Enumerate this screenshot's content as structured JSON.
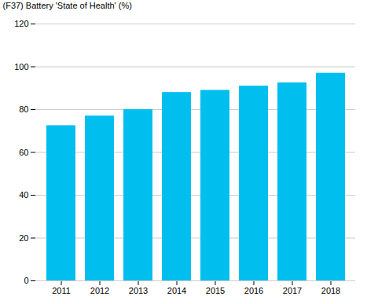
{
  "chart_data": {
    "type": "bar",
    "categories": [
      "2011",
      "2012",
      "2013",
      "2014",
      "2015",
      "2016",
      "2017",
      "2018"
    ],
    "values": [
      72.5,
      77.0,
      80.0,
      88.0,
      89.0,
      91.0,
      92.5,
      97.0
    ],
    "color": "#00BFEF",
    "ylabel": "(F37) Battery 'State of Health' (%)",
    "ylim": [
      0,
      120
    ],
    "yticks": [
      0,
      20,
      40,
      60,
      80,
      100,
      120
    ],
    "grid": true
  }
}
